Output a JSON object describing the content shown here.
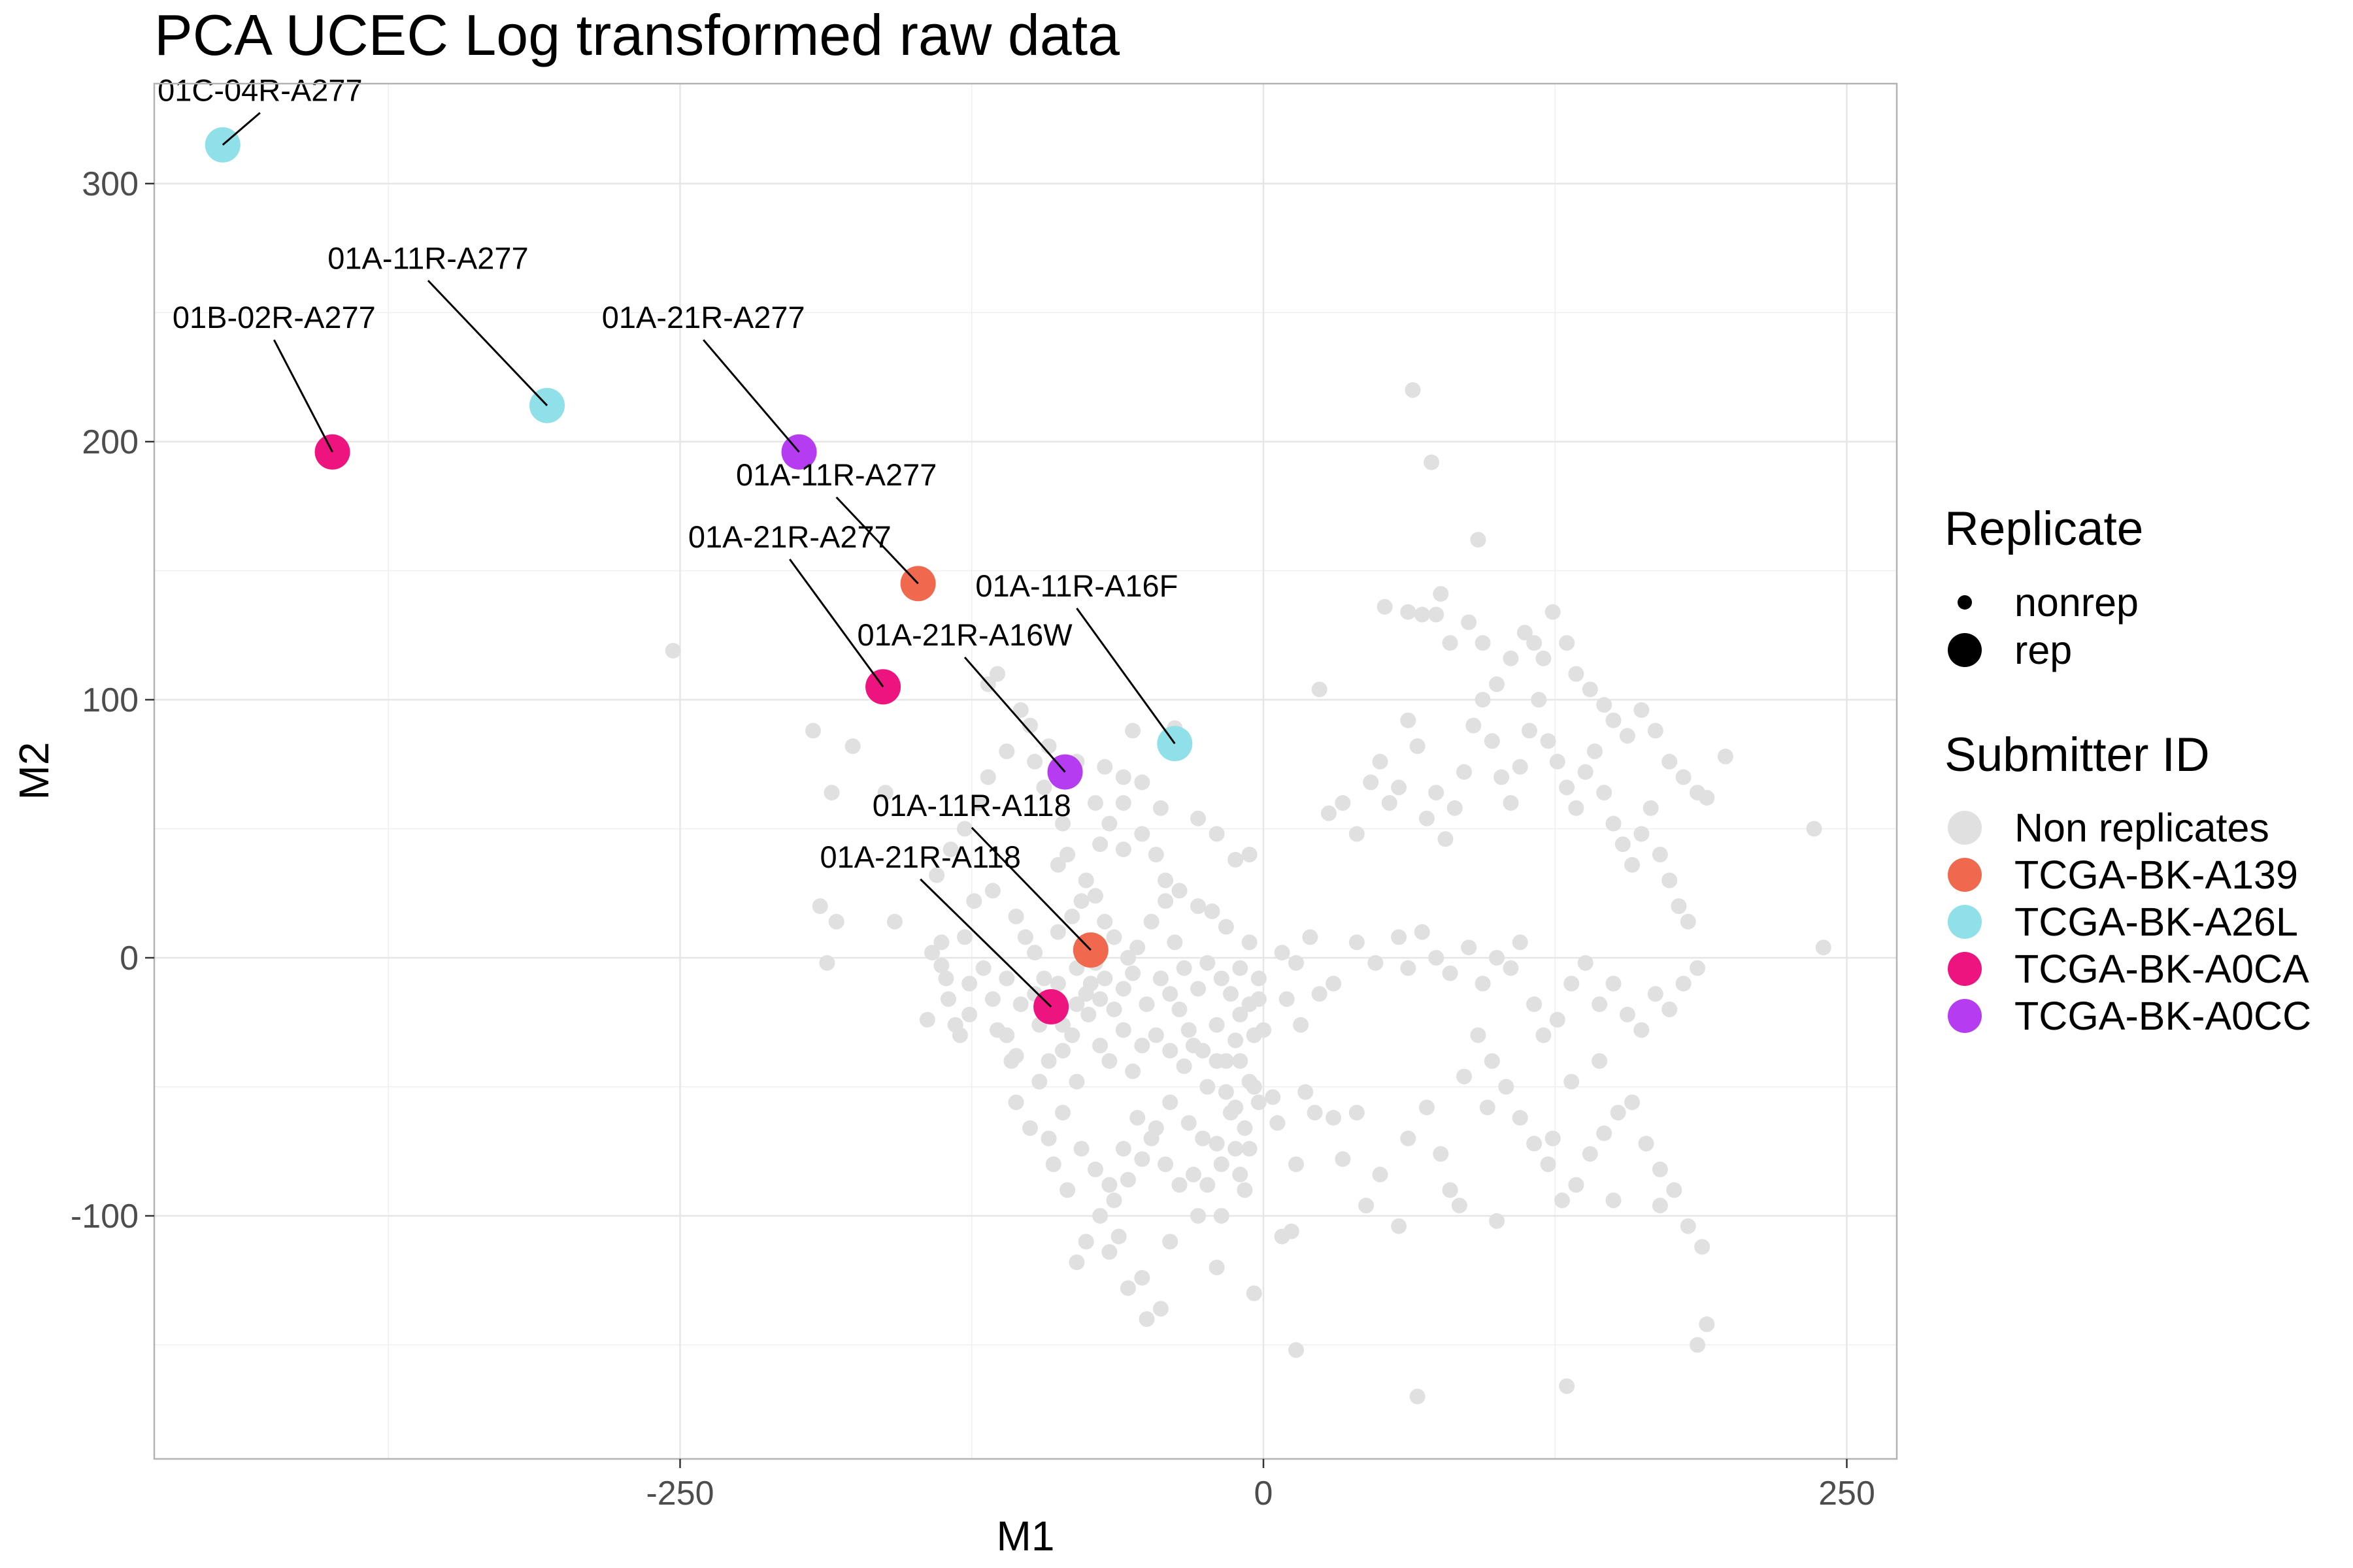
{
  "chart_data": {
    "type": "scatter",
    "title": "PCA UCEC Log transformed raw data",
    "xlabel": "M1",
    "ylabel": "M2",
    "xlim": [
      -480,
      275
    ],
    "ylim": [
      -195,
      340
    ],
    "xticks": [
      -250,
      0,
      250
    ],
    "yticks": [
      -100,
      0,
      100,
      200,
      300
    ],
    "grid": true,
    "legend": {
      "position": "right",
      "size_title": "Replicate",
      "size_entries": [
        "nonrep",
        "rep"
      ],
      "color_title": "Submitter ID",
      "color_entries": [
        {
          "name": "Non replicates",
          "color": "#e0e0e0"
        },
        {
          "name": "TCGA-BK-A139",
          "color": "#f0694f"
        },
        {
          "name": "TCGA-BK-A26L",
          "color": "#8fe0e8"
        },
        {
          "name": "TCGA-BK-A0CA",
          "color": "#ee1480"
        },
        {
          "name": "TCGA-BK-A0CC",
          "color": "#b63cf2"
        }
      ]
    },
    "replicates": [
      {
        "label": "01C-04R-A277",
        "group": "TCGA-BK-A26L",
        "x": -446,
        "y": 315,
        "lx": -430,
        "ly": 332
      },
      {
        "label": "01A-11R-A277",
        "group": "TCGA-BK-A26L",
        "x": -307,
        "y": 214,
        "lx": -358,
        "ly": 267
      },
      {
        "label": "01B-02R-A277",
        "group": "TCGA-BK-A0CA",
        "x": -399,
        "y": 196,
        "lx": -424,
        "ly": 244
      },
      {
        "label": "01A-21R-A277",
        "group": "TCGA-BK-A0CC",
        "x": -199,
        "y": 196,
        "lx": -240,
        "ly": 244
      },
      {
        "label": "01A-11R-A277",
        "group": "TCGA-BK-A139",
        "x": -148,
        "y": 145,
        "lx": -183,
        "ly": 183
      },
      {
        "label": "01A-21R-A277",
        "group": "TCGA-BK-A0CA",
        "x": -163,
        "y": 105,
        "lx": -203,
        "ly": 159
      },
      {
        "label": "01A-11R-A16F",
        "group": "TCGA-BK-A26L",
        "x": -38,
        "y": 83,
        "lx": -80,
        "ly": 140
      },
      {
        "label": "01A-21R-A16W",
        "group": "TCGA-BK-A0CC",
        "x": -85,
        "y": 72,
        "lx": -128,
        "ly": 121
      },
      {
        "label": "01A-11R-A118",
        "group": "TCGA-BK-A139",
        "x": -74,
        "y": 3,
        "lx": -125,
        "ly": 55
      },
      {
        "label": "01A-21R-A118",
        "group": "TCGA-BK-A0CA",
        "x": -91,
        "y": -19,
        "lx": -147,
        "ly": 35
      }
    ],
    "nonrep": [
      [
        -253,
        119
      ],
      [
        64,
        220
      ],
      [
        72,
        192
      ],
      [
        92,
        162
      ],
      [
        -56,
        88
      ],
      [
        -38,
        89
      ],
      [
        -193,
        88
      ],
      [
        -176,
        82
      ],
      [
        -185,
        64
      ],
      [
        -162,
        64
      ],
      [
        -190,
        20
      ],
      [
        -183,
        14
      ],
      [
        -187,
        -2
      ],
      [
        -158,
        14
      ],
      [
        -142,
        2
      ],
      [
        -138,
        -3
      ],
      [
        -144,
        -24
      ],
      [
        -135,
        -16
      ],
      [
        -130,
        -30
      ],
      [
        -126,
        -10
      ],
      [
        -138,
        6
      ],
      [
        -124,
        22
      ],
      [
        -110,
        -30
      ],
      [
        -106,
        -38
      ],
      [
        -114,
        -28
      ],
      [
        -98,
        -14
      ],
      [
        -88,
        -10
      ],
      [
        -82,
        -30
      ],
      [
        -75,
        -22
      ],
      [
        -70,
        -34
      ],
      [
        -66,
        -40
      ],
      [
        -60,
        -28
      ],
      [
        -56,
        -44
      ],
      [
        -52,
        -34
      ],
      [
        -46,
        -30
      ],
      [
        -40,
        -36
      ],
      [
        -34,
        -42
      ],
      [
        -30,
        -34
      ],
      [
        -24,
        -50
      ],
      [
        -20,
        -26
      ],
      [
        -16,
        -40
      ],
      [
        -12,
        -32
      ],
      [
        -6,
        -48
      ],
      [
        -4,
        -30
      ],
      [
        -80,
        -48
      ],
      [
        -86,
        -60
      ],
      [
        -96,
        -48
      ],
      [
        -100,
        -66
      ],
      [
        -106,
        -56
      ],
      [
        -108,
        -40
      ],
      [
        -104,
        -18
      ],
      [
        -98,
        2
      ],
      [
        -94,
        -8
      ],
      [
        -88,
        10
      ],
      [
        -82,
        16
      ],
      [
        -78,
        22
      ],
      [
        -72,
        24
      ],
      [
        -68,
        14
      ],
      [
        -64,
        8
      ],
      [
        -58,
        0
      ],
      [
        -54,
        4
      ],
      [
        -48,
        14
      ],
      [
        -42,
        22
      ],
      [
        -38,
        6
      ],
      [
        -34,
        -4
      ],
      [
        -28,
        -12
      ],
      [
        -24,
        -2
      ],
      [
        -18,
        -8
      ],
      [
        -14,
        -14
      ],
      [
        -10,
        -22
      ],
      [
        -6,
        -18
      ],
      [
        -2,
        -8
      ],
      [
        0,
        -28
      ],
      [
        -88,
        36
      ],
      [
        -84,
        40
      ],
      [
        -76,
        30
      ],
      [
        -70,
        44
      ],
      [
        -66,
        52
      ],
      [
        -60,
        42
      ],
      [
        -52,
        48
      ],
      [
        -46,
        40
      ],
      [
        -42,
        30
      ],
      [
        -36,
        26
      ],
      [
        -28,
        20
      ],
      [
        -22,
        18
      ],
      [
        -16,
        12
      ],
      [
        -10,
        -4
      ],
      [
        -6,
        6
      ],
      [
        -44,
        58
      ],
      [
        -52,
        68
      ],
      [
        -60,
        70
      ],
      [
        -72,
        60
      ],
      [
        -86,
        52
      ],
      [
        -94,
        66
      ],
      [
        -98,
        76
      ],
      [
        -110,
        80
      ],
      [
        -118,
        70
      ],
      [
        -122,
        60
      ],
      [
        -128,
        50
      ],
      [
        -134,
        42
      ],
      [
        -140,
        32
      ],
      [
        -118,
        106
      ],
      [
        -114,
        110
      ],
      [
        -104,
        96
      ],
      [
        -100,
        90
      ],
      [
        -92,
        82
      ],
      [
        -80,
        76
      ],
      [
        -68,
        74
      ],
      [
        -60,
        60
      ],
      [
        -28,
        54
      ],
      [
        -20,
        48
      ],
      [
        -12,
        38
      ],
      [
        -6,
        40
      ],
      [
        -2,
        -16
      ],
      [
        -4,
        -50
      ],
      [
        -14,
        -60
      ],
      [
        -20,
        -72
      ],
      [
        -26,
        -70
      ],
      [
        -32,
        -64
      ],
      [
        -40,
        -56
      ],
      [
        -46,
        -66
      ],
      [
        -52,
        -78
      ],
      [
        -58,
        -86
      ],
      [
        -64,
        -94
      ],
      [
        -70,
        -100
      ],
      [
        -76,
        -110
      ],
      [
        -80,
        -118
      ],
      [
        -84,
        -90
      ],
      [
        -90,
        -80
      ],
      [
        -92,
        -70
      ],
      [
        -78,
        -74
      ],
      [
        -72,
        -82
      ],
      [
        -66,
        -88
      ],
      [
        -60,
        -74
      ],
      [
        -54,
        -62
      ],
      [
        -48,
        -70
      ],
      [
        -42,
        -80
      ],
      [
        -36,
        -88
      ],
      [
        -30,
        -84
      ],
      [
        -24,
        -88
      ],
      [
        -18,
        -80
      ],
      [
        -12,
        -74
      ],
      [
        -28,
        -100
      ],
      [
        -40,
        -110
      ],
      [
        -52,
        -124
      ],
      [
        -58,
        -128
      ],
      [
        -44,
        -136
      ],
      [
        -50,
        -140
      ],
      [
        -62,
        -108
      ],
      [
        -66,
        -114
      ],
      [
        -20,
        -120
      ],
      [
        -4,
        -130
      ],
      [
        -18,
        -100
      ],
      [
        -8,
        -90
      ],
      [
        -10,
        -40
      ],
      [
        -2,
        -56
      ],
      [
        -110,
        -8
      ],
      [
        -116,
        -16
      ],
      [
        -120,
        -4
      ],
      [
        -126,
        -22
      ],
      [
        -132,
        -26
      ],
      [
        -136,
        -8
      ],
      [
        -128,
        8
      ],
      [
        -116,
        26
      ],
      [
        -106,
        16
      ],
      [
        -102,
        8
      ],
      [
        -96,
        -26
      ],
      [
        -92,
        -40
      ],
      [
        -86,
        -36
      ],
      [
        -80,
        -4
      ],
      [
        -74,
        -10
      ],
      [
        -70,
        -16
      ],
      [
        -64,
        -20
      ],
      [
        -60,
        -12
      ],
      [
        -56,
        -6
      ],
      [
        -50,
        -18
      ],
      [
        -44,
        -8
      ],
      [
        -40,
        -14
      ],
      [
        -36,
        -20
      ],
      [
        -32,
        -28
      ],
      [
        -26,
        -36
      ],
      [
        -20,
        -40
      ],
      [
        -16,
        -52
      ],
      [
        -12,
        -58
      ],
      [
        -8,
        -66
      ],
      [
        -86,
        -26
      ],
      [
        -80,
        -18
      ],
      [
        -76,
        -14
      ],
      [
        -72,
        -2
      ],
      [
        -68,
        -8
      ],
      [
        8,
        2
      ],
      [
        14,
        -2
      ],
      [
        20,
        8
      ],
      [
        24,
        -14
      ],
      [
        30,
        -10
      ],
      [
        40,
        6
      ],
      [
        48,
        -2
      ],
      [
        58,
        8
      ],
      [
        62,
        -4
      ],
      [
        68,
        10
      ],
      [
        74,
        0
      ],
      [
        80,
        -6
      ],
      [
        88,
        4
      ],
      [
        94,
        -10
      ],
      [
        100,
        0
      ],
      [
        106,
        -4
      ],
      [
        110,
        6
      ],
      [
        116,
        -18
      ],
      [
        120,
        -30
      ],
      [
        126,
        -24
      ],
      [
        132,
        -10
      ],
      [
        138,
        -2
      ],
      [
        144,
        -18
      ],
      [
        150,
        -10
      ],
      [
        156,
        -22
      ],
      [
        162,
        -28
      ],
      [
        168,
        -14
      ],
      [
        174,
        -20
      ],
      [
        180,
        -10
      ],
      [
        186,
        -4
      ],
      [
        24,
        104
      ],
      [
        28,
        56
      ],
      [
        34,
        60
      ],
      [
        40,
        48
      ],
      [
        46,
        68
      ],
      [
        50,
        76
      ],
      [
        54,
        60
      ],
      [
        58,
        66
      ],
      [
        62,
        92
      ],
      [
        66,
        82
      ],
      [
        70,
        54
      ],
      [
        74,
        64
      ],
      [
        78,
        46
      ],
      [
        82,
        58
      ],
      [
        86,
        72
      ],
      [
        90,
        90
      ],
      [
        94,
        100
      ],
      [
        98,
        84
      ],
      [
        102,
        70
      ],
      [
        106,
        60
      ],
      [
        110,
        74
      ],
      [
        114,
        88
      ],
      [
        118,
        100
      ],
      [
        122,
        84
      ],
      [
        126,
        76
      ],
      [
        130,
        66
      ],
      [
        134,
        58
      ],
      [
        138,
        72
      ],
      [
        142,
        80
      ],
      [
        146,
        64
      ],
      [
        150,
        52
      ],
      [
        154,
        44
      ],
      [
        158,
        36
      ],
      [
        162,
        48
      ],
      [
        166,
        58
      ],
      [
        170,
        40
      ],
      [
        174,
        30
      ],
      [
        178,
        20
      ],
      [
        182,
        14
      ],
      [
        186,
        64
      ],
      [
        10,
        -16
      ],
      [
        16,
        -26
      ],
      [
        18,
        -52
      ],
      [
        14,
        -80
      ],
      [
        12,
        -106
      ],
      [
        8,
        -108
      ],
      [
        22,
        -60
      ],
      [
        -6,
        -74
      ],
      [
        -10,
        -84
      ],
      [
        40,
        -60
      ],
      [
        50,
        -84
      ],
      [
        58,
        -104
      ],
      [
        62,
        -70
      ],
      [
        70,
        -58
      ],
      [
        76,
        -76
      ],
      [
        80,
        -90
      ],
      [
        86,
        -46
      ],
      [
        92,
        -30
      ],
      [
        98,
        -40
      ],
      [
        104,
        -50
      ],
      [
        110,
        -62
      ],
      [
        116,
        -72
      ],
      [
        122,
        -80
      ],
      [
        128,
        -94
      ],
      [
        134,
        -88
      ],
      [
        140,
        -76
      ],
      [
        146,
        -68
      ],
      [
        152,
        -60
      ],
      [
        158,
        -56
      ],
      [
        164,
        -72
      ],
      [
        170,
        -82
      ],
      [
        176,
        -90
      ],
      [
        182,
        -104
      ],
      [
        188,
        -112
      ],
      [
        52,
        136
      ],
      [
        62,
        134
      ],
      [
        68,
        133
      ],
      [
        74,
        133
      ],
      [
        76,
        141
      ],
      [
        80,
        122
      ],
      [
        88,
        130
      ],
      [
        94,
        122
      ],
      [
        100,
        106
      ],
      [
        106,
        116
      ],
      [
        112,
        126
      ],
      [
        116,
        122
      ],
      [
        120,
        116
      ],
      [
        124,
        134
      ],
      [
        130,
        122
      ],
      [
        134,
        110
      ],
      [
        140,
        104
      ],
      [
        146,
        98
      ],
      [
        150,
        92
      ],
      [
        156,
        86
      ],
      [
        162,
        96
      ],
      [
        168,
        88
      ],
      [
        174,
        76
      ],
      [
        180,
        70
      ],
      [
        190,
        62
      ],
      [
        198,
        78
      ],
      [
        236,
        50
      ],
      [
        240,
        4
      ],
      [
        190,
        -142
      ],
      [
        186,
        -150
      ],
      [
        130,
        -166
      ],
      [
        66,
        -170
      ],
      [
        14,
        -152
      ],
      [
        100,
        -102
      ],
      [
        150,
        -94
      ],
      [
        170,
        -96
      ],
      [
        4,
        -54
      ],
      [
        6,
        -64
      ],
      [
        34,
        -78
      ],
      [
        30,
        -62
      ],
      [
        44,
        -96
      ],
      [
        84,
        -96
      ],
      [
        96,
        -58
      ],
      [
        124,
        -70
      ],
      [
        132,
        -48
      ],
      [
        144,
        -40
      ]
    ]
  }
}
